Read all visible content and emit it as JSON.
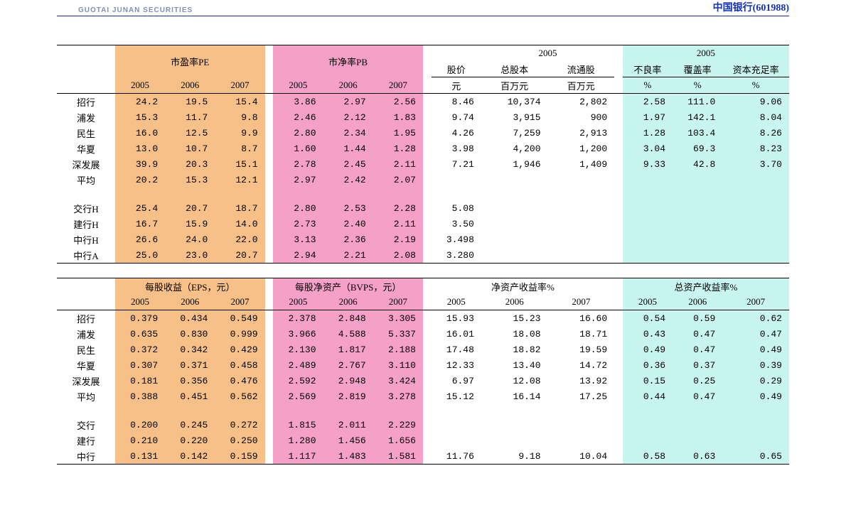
{
  "header": {
    "logo_text": "GUOTAI JUNAN SECURITIES",
    "stock_name_code": "中国银行(601988)"
  },
  "colors": {
    "pe_bg": "#f6c088",
    "pb_bg": "#f5a0c8",
    "cy_bg": "#c8f5f0",
    "rule": "#1030c0"
  },
  "table1": {
    "headers": {
      "pe": "市盈率PE",
      "pb": "市净率PB",
      "y2005": "2005",
      "price": "股价",
      "shares": "总股本",
      "float": "流通股",
      "npl": "不良率",
      "cov": "覆盖率",
      "car": "资本充足率",
      "sub_years": [
        "2005",
        "2006",
        "2007"
      ],
      "unit_yuan": "元",
      "unit_mm": "百万元",
      "unit_pct": "%"
    },
    "rows": [
      {
        "label": "招行",
        "pe": [
          "24.2",
          "19.5",
          "15.4"
        ],
        "pb": [
          "3.86",
          "2.97",
          "2.56"
        ],
        "price": "8.46",
        "shares": "10,374",
        "float": "2,802",
        "npl": "2.58",
        "cov": "111.0",
        "car": "9.06"
      },
      {
        "label": "浦发",
        "pe": [
          "15.3",
          "11.7",
          "9.8"
        ],
        "pb": [
          "2.46",
          "2.12",
          "1.83"
        ],
        "price": "9.74",
        "shares": "3,915",
        "float": "900",
        "npl": "1.97",
        "cov": "142.1",
        "car": "8.04"
      },
      {
        "label": "民生",
        "pe": [
          "16.0",
          "12.5",
          "9.9"
        ],
        "pb": [
          "2.80",
          "2.34",
          "1.95"
        ],
        "price": "4.26",
        "shares": "7,259",
        "float": "2,913",
        "npl": "1.28",
        "cov": "103.4",
        "car": "8.26"
      },
      {
        "label": "华夏",
        "pe": [
          "13.0",
          "10.7",
          "8.7"
        ],
        "pb": [
          "1.60",
          "1.44",
          "1.28"
        ],
        "price": "3.98",
        "shares": "4,200",
        "float": "1,200",
        "npl": "3.04",
        "cov": "69.3",
        "car": "8.23"
      },
      {
        "label": "深发展",
        "pe": [
          "39.9",
          "20.3",
          "15.1"
        ],
        "pb": [
          "2.78",
          "2.45",
          "2.11"
        ],
        "price": "7.21",
        "shares": "1,946",
        "float": "1,409",
        "npl": "9.33",
        "cov": "42.8",
        "car": "3.70"
      },
      {
        "label": "平均",
        "pe": [
          "20.2",
          "15.3",
          "12.1"
        ],
        "pb": [
          "2.97",
          "2.42",
          "2.07"
        ],
        "price": "",
        "shares": "",
        "float": "",
        "npl": "",
        "cov": "",
        "car": ""
      }
    ],
    "rows2": [
      {
        "label": "交行H",
        "pe": [
          "25.4",
          "20.7",
          "18.7"
        ],
        "pb": [
          "2.80",
          "2.53",
          "2.28"
        ],
        "price": "5.08",
        "shares": "",
        "float": "",
        "npl": "",
        "cov": "",
        "car": ""
      },
      {
        "label": "建行H",
        "pe": [
          "16.7",
          "15.9",
          "14.0"
        ],
        "pb": [
          "2.73",
          "2.40",
          "2.11"
        ],
        "price": "3.50",
        "shares": "",
        "float": "",
        "npl": "",
        "cov": "",
        "car": ""
      },
      {
        "label": "中行H",
        "pe": [
          "26.6",
          "24.0",
          "22.0"
        ],
        "pb": [
          "3.13",
          "2.36",
          "2.19"
        ],
        "price": "3.498",
        "shares": "",
        "float": "",
        "npl": "",
        "cov": "",
        "car": ""
      },
      {
        "label": "中行A",
        "pe": [
          "25.0",
          "23.0",
          "20.7"
        ],
        "pb": [
          "2.94",
          "2.21",
          "2.08"
        ],
        "price": "3.280",
        "shares": "",
        "float": "",
        "npl": "",
        "cov": "",
        "car": ""
      }
    ]
  },
  "table2": {
    "headers": {
      "eps": "每股收益（EPS，元）",
      "bvps": "每股净资产（BVPS，元）",
      "roe": "净资产收益率%",
      "roa": "总资产收益率%",
      "sub_years": [
        "2005",
        "2006",
        "2007"
      ]
    },
    "rows": [
      {
        "label": "招行",
        "eps": [
          "0.379",
          "0.434",
          "0.549"
        ],
        "bvps": [
          "2.378",
          "2.848",
          "3.305"
        ],
        "roe": [
          "15.93",
          "15.23",
          "16.60"
        ],
        "roa": [
          "0.54",
          "0.59",
          "0.62"
        ]
      },
      {
        "label": "浦发",
        "eps": [
          "0.635",
          "0.830",
          "0.999"
        ],
        "bvps": [
          "3.966",
          "4.588",
          "5.337"
        ],
        "roe": [
          "16.01",
          "18.08",
          "18.71"
        ],
        "roa": [
          "0.43",
          "0.47",
          "0.47"
        ]
      },
      {
        "label": "民生",
        "eps": [
          "0.372",
          "0.342",
          "0.429"
        ],
        "bvps": [
          "2.130",
          "1.817",
          "2.188"
        ],
        "roe": [
          "17.48",
          "18.82",
          "19.59"
        ],
        "roa": [
          "0.49",
          "0.47",
          "0.49"
        ]
      },
      {
        "label": "华夏",
        "eps": [
          "0.307",
          "0.371",
          "0.458"
        ],
        "bvps": [
          "2.489",
          "2.767",
          "3.110"
        ],
        "roe": [
          "12.33",
          "13.40",
          "14.72"
        ],
        "roa": [
          "0.36",
          "0.37",
          "0.39"
        ]
      },
      {
        "label": "深发展",
        "eps": [
          "0.181",
          "0.356",
          "0.476"
        ],
        "bvps": [
          "2.592",
          "2.948",
          "3.424"
        ],
        "roe": [
          "6.97",
          "12.08",
          "13.92"
        ],
        "roa": [
          "0.15",
          "0.25",
          "0.29"
        ]
      },
      {
        "label": "平均",
        "eps": [
          "0.388",
          "0.451",
          "0.562"
        ],
        "bvps": [
          "2.569",
          "2.819",
          "3.278"
        ],
        "roe": [
          "15.12",
          "16.14",
          "17.25"
        ],
        "roa": [
          "0.44",
          "0.47",
          "0.49"
        ]
      }
    ],
    "rows2": [
      {
        "label": "交行",
        "eps": [
          "0.200",
          "0.245",
          "0.272"
        ],
        "bvps": [
          "1.815",
          "2.011",
          "2.229"
        ],
        "roe": [
          "",
          "",
          ""
        ],
        "roa": [
          "",
          "",
          ""
        ]
      },
      {
        "label": "建行",
        "eps": [
          "0.210",
          "0.220",
          "0.250"
        ],
        "bvps": [
          "1.280",
          "1.456",
          "1.656"
        ],
        "roe": [
          "",
          "",
          ""
        ],
        "roa": [
          "",
          "",
          ""
        ]
      },
      {
        "label": "中行",
        "eps": [
          "0.131",
          "0.142",
          "0.159"
        ],
        "bvps": [
          "1.117",
          "1.483",
          "1.581"
        ],
        "roe": [
          "11.76",
          "9.18",
          "10.04"
        ],
        "roa": [
          "0.58",
          "0.63",
          "0.65"
        ]
      }
    ]
  }
}
